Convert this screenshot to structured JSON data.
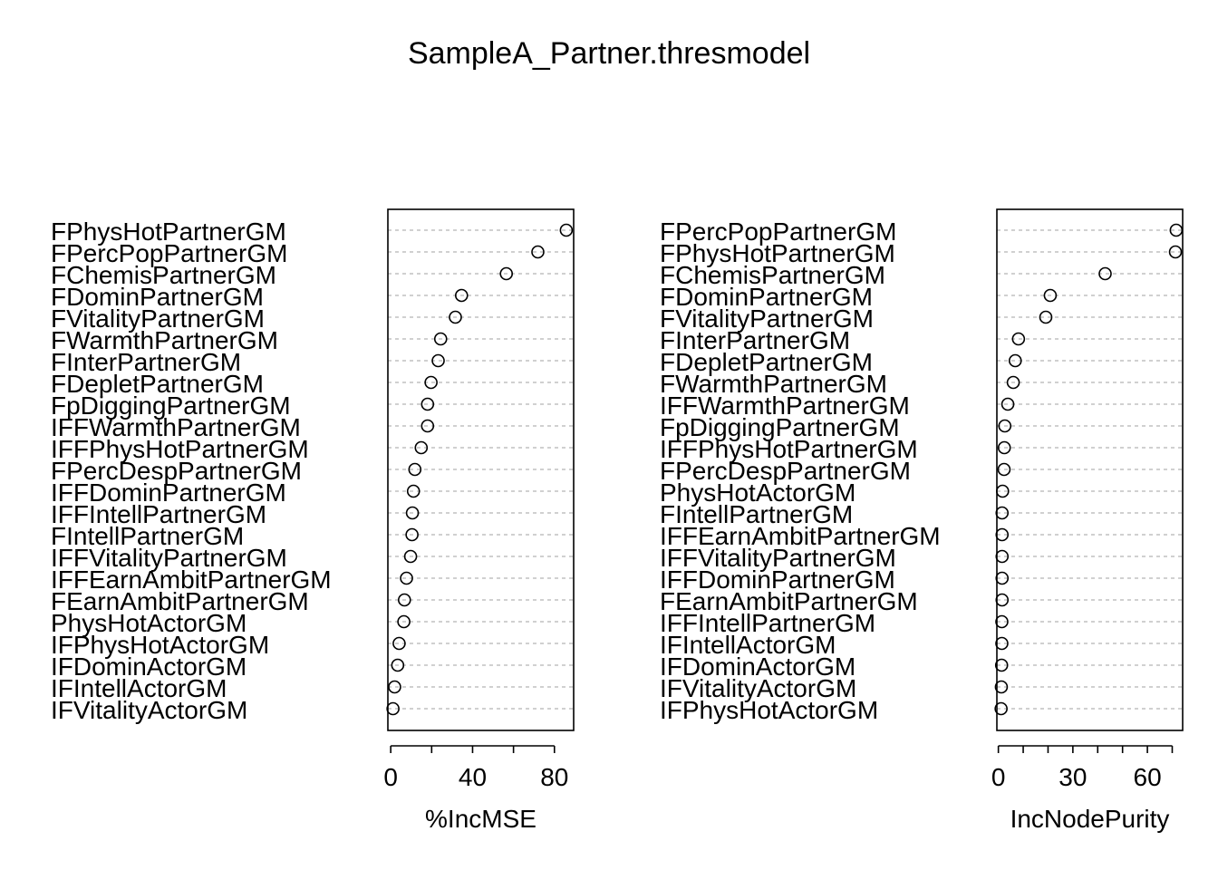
{
  "title": "SampleA_Partner.thresmodel",
  "chart_data": [
    {
      "type": "scatter",
      "subtype": "dotchart",
      "xlabel": "%IncMSE",
      "x_ticks": [
        0,
        20,
        40,
        60,
        80
      ],
      "x_tick_labels": [
        "0",
        "",
        "40",
        "",
        "80"
      ],
      "xlim": [
        -1.4,
        89.4
      ],
      "labels": [
        "FPhysHotPartnerGM",
        "FPercPopPartnerGM",
        "FChemisPartnerGM",
        "FDominPartnerGM",
        "FVitalityPartnerGM",
        "FWarmthPartnerGM",
        "FInterPartnerGM",
        "FDepletPartnerGM",
        "FpDiggingPartnerGM",
        "IFFWarmthPartnerGM",
        "IFFPhysHotPartnerGM",
        "FPercDespPartnerGM",
        "IFFDominPartnerGM",
        "IFFIntellPartnerGM",
        "FIntellPartnerGM",
        "IFFVitalityPartnerGM",
        "IFFEarnAmbitPartnerGM",
        "FEarnAmbitPartnerGM",
        "PhysHotActorGM",
        "IFPhysHotActorGM",
        "IFDominActorGM",
        "IFIntellActorGM",
        "IFVitalityActorGM"
      ],
      "values": [
        85.8,
        71.9,
        56.5,
        34.6,
        31.6,
        24.4,
        23.2,
        19.7,
        18.0,
        18.0,
        14.9,
        11.8,
        11.1,
        10.6,
        10.4,
        9.7,
        7.7,
        6.7,
        6.4,
        4.1,
        3.4,
        1.9,
        1.1
      ],
      "grid": "dashed-rows"
    },
    {
      "type": "scatter",
      "subtype": "dotchart",
      "xlabel": "IncNodePurity",
      "x_ticks": [
        0,
        10,
        20,
        30,
        40,
        50,
        60,
        70
      ],
      "x_tick_labels": [
        "0",
        "",
        "",
        "30",
        "",
        "",
        "60",
        ""
      ],
      "xlim": [
        -0.6,
        74.2
      ],
      "labels": [
        "FPercPopPartnerGM",
        "FPhysHotPartnerGM",
        "FChemisPartnerGM",
        "FDominPartnerGM",
        "FVitalityPartnerGM",
        "FInterPartnerGM",
        "FDepletPartnerGM",
        "FWarmthPartnerGM",
        "IFFWarmthPartnerGM",
        "FpDiggingPartnerGM",
        "IFFPhysHotPartnerGM",
        "FPercDespPartnerGM",
        "PhysHotActorGM",
        "FIntellPartnerGM",
        "IFFEarnAmbitPartnerGM",
        "IFFVitalityPartnerGM",
        "IFFDominPartnerGM",
        "FEarnAmbitPartnerGM",
        "IFFIntellPartnerGM",
        "IFIntellActorGM",
        "IFDominActorGM",
        "IFVitalityActorGM",
        "IFPhysHotActorGM"
      ],
      "values": [
        71.6,
        71.3,
        43.0,
        20.9,
        19.1,
        8.1,
        6.8,
        6.0,
        3.8,
        2.6,
        2.4,
        2.3,
        1.7,
        1.5,
        1.5,
        1.5,
        1.5,
        1.5,
        1.4,
        1.4,
        1.3,
        1.2,
        1.1
      ],
      "grid": "dashed-rows"
    }
  ]
}
